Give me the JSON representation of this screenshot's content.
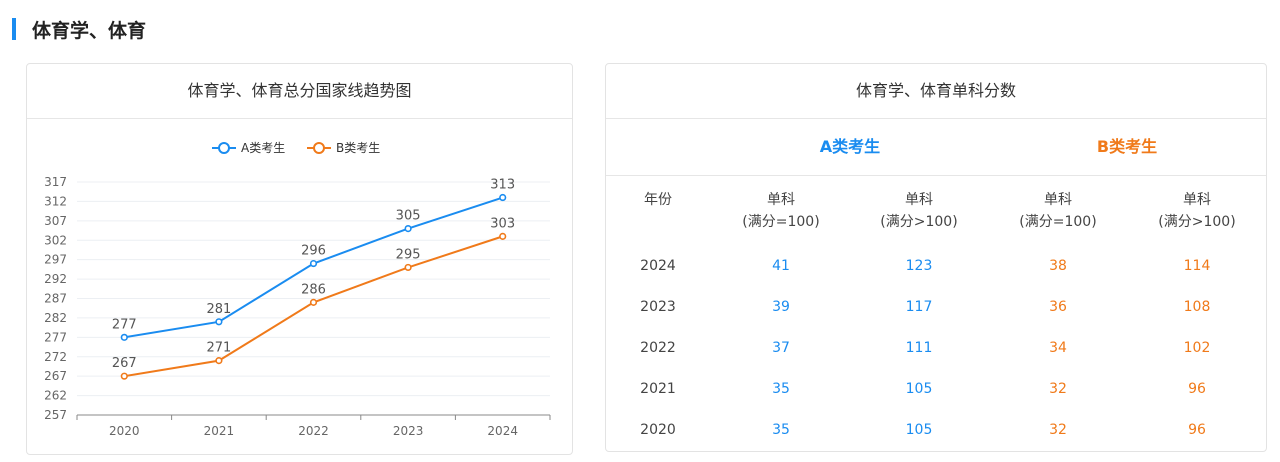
{
  "page_title": "体育学、体育",
  "left_panel": {
    "title": "体育学、体育总分国家线趋势图"
  },
  "right_panel": {
    "title": "体育学、体育单科分数",
    "group_a": "A类考生",
    "group_b": "B类考生",
    "headers": [
      {
        "l1": "年份",
        "l2": ""
      },
      {
        "l1": "单科",
        "l2": "(满分=100)"
      },
      {
        "l1": "单科",
        "l2": "(满分>100)"
      },
      {
        "l1": "单科",
        "l2": "(满分=100)"
      },
      {
        "l1": "单科",
        "l2": "(满分>100)"
      }
    ],
    "rows": [
      [
        "2024",
        "41",
        "123",
        "38",
        "114"
      ],
      [
        "2023",
        "39",
        "117",
        "36",
        "108"
      ],
      [
        "2022",
        "37",
        "111",
        "34",
        "102"
      ],
      [
        "2021",
        "35",
        "105",
        "32",
        "96"
      ],
      [
        "2020",
        "35",
        "105",
        "32",
        "96"
      ]
    ]
  },
  "colors": {
    "a": "#1a8cf0",
    "b": "#f07a1a"
  },
  "chart_data": {
    "type": "line",
    "title": "体育学、体育总分国家线趋势图",
    "categories": [
      "2020",
      "2021",
      "2022",
      "2023",
      "2024"
    ],
    "series": [
      {
        "name": "A类考生",
        "values": [
          277,
          281,
          296,
          305,
          313
        ]
      },
      {
        "name": "B类考生",
        "values": [
          267,
          271,
          286,
          295,
          303
        ]
      }
    ],
    "yticks": [
      "257",
      "262",
      "267",
      "272",
      "277",
      "282",
      "287",
      "292",
      "297",
      "302",
      "307",
      "312",
      "317"
    ],
    "ylim": [
      257,
      317
    ],
    "legend": "top-center",
    "grid": true
  }
}
